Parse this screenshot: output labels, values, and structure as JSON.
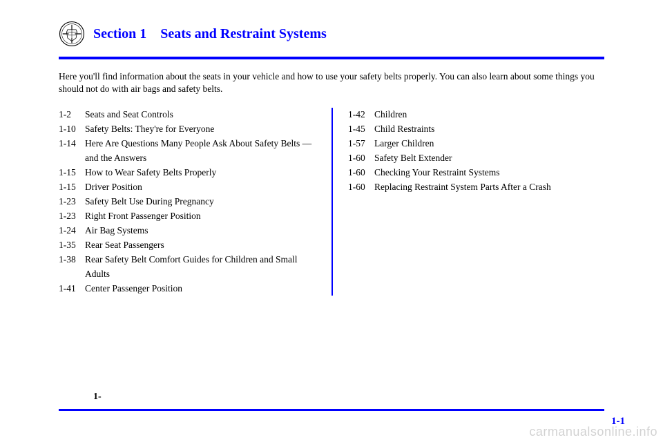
{
  "header": {
    "section_label": "Section 1",
    "section_title": "Seats and Restraint Systems"
  },
  "intro": "Here you'll find information about the seats in your vehicle and how to use your safety belts properly. You can also learn about some things you should not do with air bags and safety belts.",
  "toc_left": [
    {
      "page": "1-2",
      "title": "Seats and Seat Controls"
    },
    {
      "page": "1-10",
      "title": "Safety Belts: They're for Everyone"
    },
    {
      "page": "1-14",
      "title": "Here Are Questions Many People Ask About Safety Belts — and the Answers"
    },
    {
      "page": "1-15",
      "title": "How to Wear Safety Belts Properly"
    },
    {
      "page": "1-15",
      "title": "Driver Position"
    },
    {
      "page": "1-23",
      "title": "Safety Belt Use During Pregnancy"
    },
    {
      "page": "1-23",
      "title": "Right Front Passenger Position"
    },
    {
      "page": "1-24",
      "title": "Air Bag Systems"
    },
    {
      "page": "1-35",
      "title": "Rear Seat Passengers"
    },
    {
      "page": "1-38",
      "title": "Rear Safety Belt Comfort Guides for Children and Small Adults"
    },
    {
      "page": "1-41",
      "title": "Center Passenger Position"
    }
  ],
  "toc_right": [
    {
      "page": "1-42",
      "title": "Children"
    },
    {
      "page": "1-45",
      "title": "Child Restraints"
    },
    {
      "page": "1-57",
      "title": "Larger Children"
    },
    {
      "page": "1-60",
      "title": "Safety Belt Extender"
    },
    {
      "page": "1-60",
      "title": "Checking Your Restraint Systems"
    },
    {
      "page": "1-60",
      "title": "Replacing Restraint System Parts After a Crash"
    }
  ],
  "footer": {
    "left_marker": "1-",
    "page_number": "1-1"
  },
  "watermark": "carmanualsonline.info",
  "colors": {
    "accent": "#0000ff",
    "text": "#000000",
    "background": "#ffffff",
    "watermark": "rgba(0,0,0,0.18)"
  }
}
